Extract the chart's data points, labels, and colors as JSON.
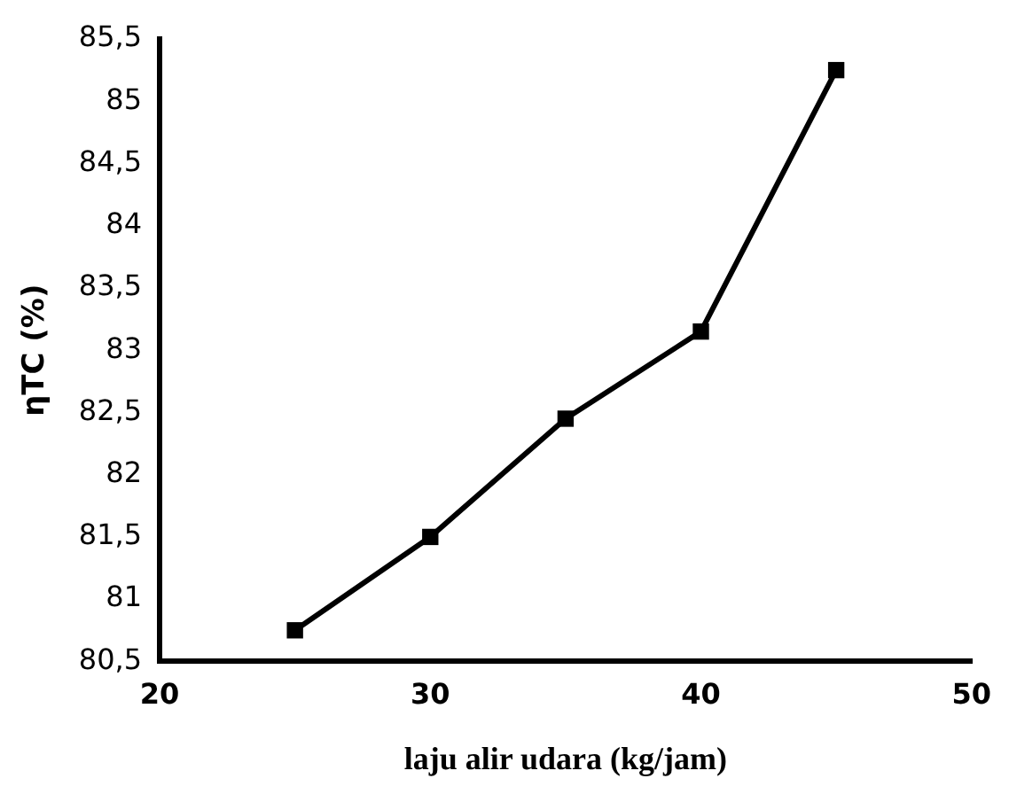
{
  "chart_data": {
    "type": "line",
    "xlabel": "laju alir udara (kg/jam)",
    "ylabel": "ηTC (%)",
    "x": [
      25,
      30,
      35,
      40,
      45
    ],
    "series": [
      {
        "color": "#000000",
        "values": [
          80.75,
          81.5,
          82.45,
          83.15,
          85.25
        ]
      }
    ],
    "xlim": [
      20,
      50
    ],
    "xticks": [
      20,
      30,
      40,
      50
    ],
    "ylim": [
      80.5,
      85.5
    ],
    "yticks": [
      {
        "value": 80.5,
        "label": "80,5"
      },
      81,
      {
        "value": 81.5,
        "label": "81,5"
      },
      82,
      {
        "value": 82.5,
        "label": "82,5"
      },
      83,
      {
        "value": 83.5,
        "label": "83,5"
      },
      84,
      {
        "value": 84.5,
        "label": "84,5"
      },
      85,
      {
        "value": 85.5,
        "label": "85,5"
      }
    ],
    "grid": false,
    "legend": false,
    "marker": "square",
    "line_style": "solid"
  }
}
